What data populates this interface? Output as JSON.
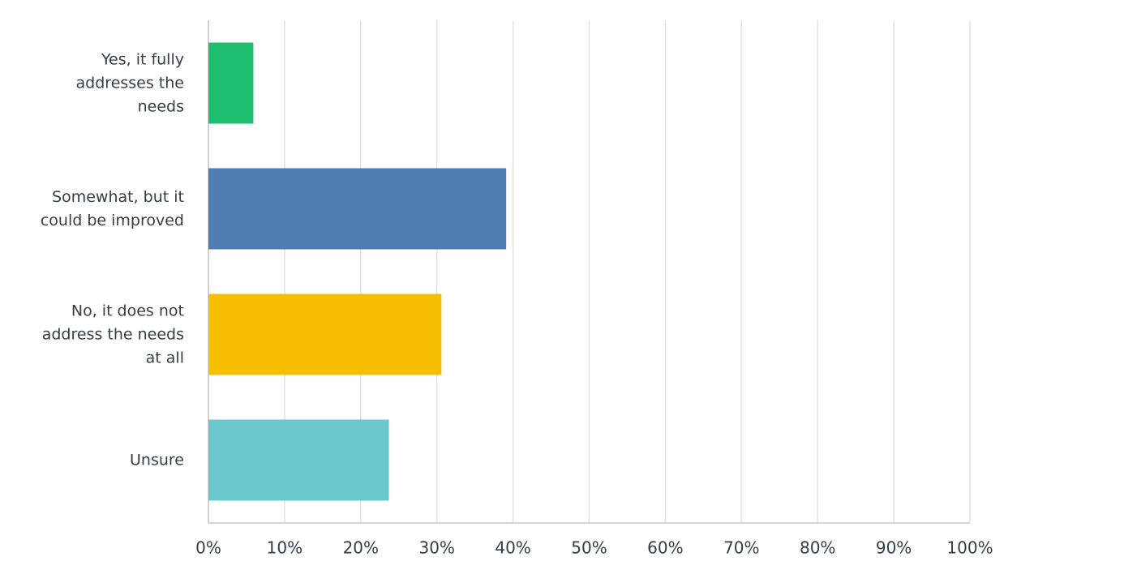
{
  "chart_data": {
    "type": "bar",
    "orientation": "horizontal",
    "categories": [
      "Yes, it fully addresses the needs",
      "Somewhat, but it could be improved",
      "No, it does not address the needs at all",
      "Unsure"
    ],
    "values": [
      5.9,
      39.1,
      30.6,
      23.7
    ],
    "colors": [
      "#1dbf6e",
      "#4f7cb3",
      "#f7bf00",
      "#6bc8cd"
    ],
    "xlim": [
      0,
      100
    ],
    "xticks": [
      {
        "value": 0,
        "label": "0%"
      },
      {
        "value": 10,
        "label": "10%"
      },
      {
        "value": 20,
        "label": "20%"
      },
      {
        "value": 30,
        "label": "30%"
      },
      {
        "value": 40,
        "label": "40%"
      },
      {
        "value": 50,
        "label": "50%"
      },
      {
        "value": 60,
        "label": "60%"
      },
      {
        "value": 70,
        "label": "70%"
      },
      {
        "value": 80,
        "label": "80%"
      },
      {
        "value": 90,
        "label": "90%"
      },
      {
        "value": 100,
        "label": "100%"
      }
    ],
    "grid": true
  }
}
